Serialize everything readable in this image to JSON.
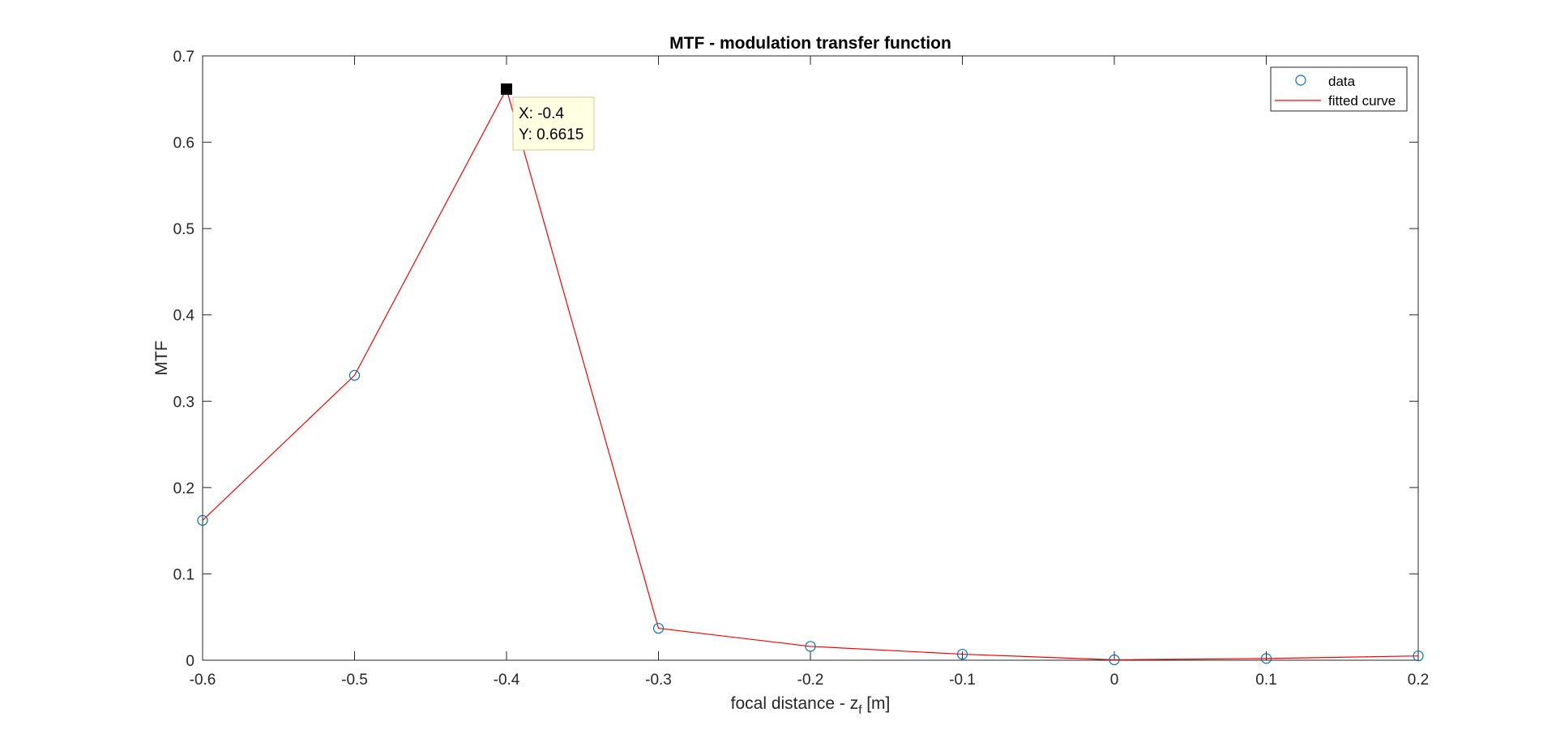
{
  "chart_data": {
    "type": "line",
    "title": "MTF - modulation transfer function",
    "xlabel": "focal distance - z",
    "xlabel_subscript": "f",
    "xlabel_suffix": " [m]",
    "ylabel": "MTF",
    "xlim": [
      -0.6,
      0.2
    ],
    "ylim": [
      0,
      0.7
    ],
    "xticks": [
      -0.6,
      -0.5,
      -0.4,
      -0.3,
      -0.2,
      -0.1,
      0,
      0.1,
      0.2
    ],
    "yticks": [
      0,
      0.1,
      0.2,
      0.3,
      0.4,
      0.5,
      0.6,
      0.7
    ],
    "grid": false,
    "legend_position": "top-right",
    "series": [
      {
        "name": "data",
        "style": "markers",
        "marker": "circle",
        "color": "#0072BD",
        "x": [
          -0.6,
          -0.5,
          -0.4,
          -0.3,
          -0.2,
          -0.1,
          0,
          0.1,
          0.2
        ],
        "y": [
          0.162,
          0.33,
          0.6615,
          0.037,
          0.016,
          0.007,
          0.0005,
          0.002,
          0.005
        ]
      },
      {
        "name": "fitted curve",
        "style": "line",
        "color": "#FF0000",
        "x": [
          -0.6,
          -0.5,
          -0.4,
          -0.3,
          -0.2,
          -0.1,
          0,
          0.1,
          0.2
        ],
        "y": [
          0.162,
          0.33,
          0.6615,
          0.037,
          0.016,
          0.007,
          0.0005,
          0.002,
          0.005
        ]
      }
    ],
    "datatip": {
      "x": -0.4,
      "y": 0.6615,
      "x_text": "X: -0.4",
      "y_text": "Y: 0.6615"
    }
  }
}
